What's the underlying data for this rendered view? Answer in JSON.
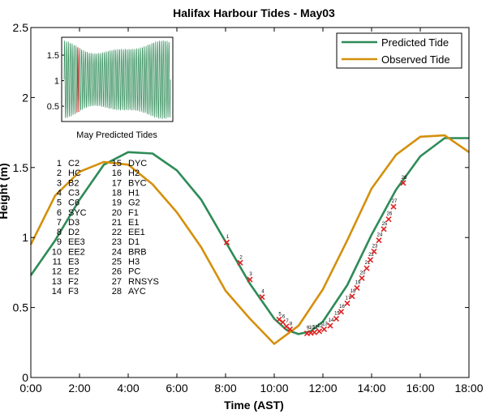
{
  "chart_data": {
    "type": "line",
    "title": "Halifax Harbour Tides - May03",
    "xlabel": "Time (AST)",
    "ylabel": "Height (m)",
    "xlim": [
      0,
      18
    ],
    "ylim": [
      0,
      2.5
    ],
    "x_ticks": [
      0,
      2,
      4,
      6,
      8,
      10,
      12,
      14,
      16,
      18
    ],
    "x_tick_labels": [
      "0:00",
      "2:00",
      "4:00",
      "6:00",
      "8:00",
      "10:00",
      "12:00",
      "14:00",
      "16:00",
      "18:00"
    ],
    "y_ticks": [
      0,
      0.5,
      1,
      1.5,
      2,
      2.5
    ],
    "y_tick_labels": [
      "0",
      "0.5",
      "1",
      "1.5",
      "2",
      "2.5"
    ],
    "grid": false,
    "legend_position": "top-right",
    "series": [
      {
        "name": "Predicted Tide",
        "color": "#2e8b57",
        "x": [
          0,
          1,
          2,
          3,
          4,
          5,
          6,
          7,
          8,
          9,
          10,
          10.5,
          11,
          11.5,
          12,
          13,
          14,
          15,
          16,
          17,
          18
        ],
        "y": [
          0.73,
          0.98,
          1.27,
          1.52,
          1.61,
          1.6,
          1.48,
          1.27,
          0.97,
          0.67,
          0.42,
          0.34,
          0.31,
          0.33,
          0.4,
          0.66,
          1.02,
          1.34,
          1.58,
          1.71,
          1.71
        ]
      },
      {
        "name": "Observed Tide",
        "color": "#d4900c",
        "x": [
          0,
          1,
          2,
          3,
          4,
          5,
          6,
          7,
          8,
          9,
          10,
          11,
          12,
          13,
          14,
          15,
          16,
          17,
          18
        ],
        "y": [
          0.95,
          1.3,
          1.47,
          1.54,
          1.52,
          1.38,
          1.18,
          0.93,
          0.62,
          0.42,
          0.24,
          0.37,
          0.63,
          0.98,
          1.35,
          1.59,
          1.72,
          1.73,
          1.61
        ]
      }
    ],
    "markers": {
      "color": "#e02020",
      "symbol": "x",
      "points": [
        {
          "label": "1",
          "x": 8.05,
          "y": 0.965
        },
        {
          "label": "2",
          "x": 8.6,
          "y": 0.82
        },
        {
          "label": "3",
          "x": 9.0,
          "y": 0.7
        },
        {
          "label": "4",
          "x": 9.5,
          "y": 0.575
        },
        {
          "label": "5",
          "x": 10.2,
          "y": 0.415
        },
        {
          "label": "6",
          "x": 10.35,
          "y": 0.395
        },
        {
          "label": "7",
          "x": 10.5,
          "y": 0.365
        },
        {
          "label": "8",
          "x": 10.65,
          "y": 0.345
        },
        {
          "label": "9",
          "x": 11.35,
          "y": 0.315
        },
        {
          "label": "10",
          "x": 11.5,
          "y": 0.318
        },
        {
          "label": "11",
          "x": 11.65,
          "y": 0.322
        },
        {
          "label": "12",
          "x": 11.85,
          "y": 0.33
        },
        {
          "label": "13",
          "x": 12.05,
          "y": 0.345
        },
        {
          "label": "14",
          "x": 12.3,
          "y": 0.37
        },
        {
          "label": "15",
          "x": 12.55,
          "y": 0.42
        },
        {
          "label": "16",
          "x": 12.75,
          "y": 0.47
        },
        {
          "label": "17",
          "x": 13.0,
          "y": 0.53
        },
        {
          "label": "18",
          "x": 13.2,
          "y": 0.58
        },
        {
          "label": "19",
          "x": 13.4,
          "y": 0.64
        },
        {
          "label": "20",
          "x": 13.6,
          "y": 0.71
        },
        {
          "label": "21",
          "x": 13.8,
          "y": 0.78
        },
        {
          "label": "22",
          "x": 13.95,
          "y": 0.84
        },
        {
          "label": "23",
          "x": 14.1,
          "y": 0.9
        },
        {
          "label": "24",
          "x": 14.3,
          "y": 0.98
        },
        {
          "label": "25",
          "x": 14.5,
          "y": 1.06
        },
        {
          "label": "26",
          "x": 14.7,
          "y": 1.13
        },
        {
          "label": "27",
          "x": 14.9,
          "y": 1.22
        },
        {
          "label": "28",
          "x": 15.3,
          "y": 1.39
        }
      ]
    },
    "station_list": [
      {
        "num": "1",
        "code": "C2"
      },
      {
        "num": "2",
        "code": "HC"
      },
      {
        "num": "3",
        "code": "B2"
      },
      {
        "num": "4",
        "code": "C3"
      },
      {
        "num": "5",
        "code": "C6"
      },
      {
        "num": "6",
        "code": "SYC"
      },
      {
        "num": "7",
        "code": "D3"
      },
      {
        "num": "8",
        "code": "D2"
      },
      {
        "num": "9",
        "code": "EE3"
      },
      {
        "num": "10",
        "code": "EE2"
      },
      {
        "num": "11",
        "code": "E3"
      },
      {
        "num": "12",
        "code": "E2"
      },
      {
        "num": "13",
        "code": "F2"
      },
      {
        "num": "14",
        "code": "F3"
      },
      {
        "num": "15",
        "code": "DYC"
      },
      {
        "num": "16",
        "code": "H2"
      },
      {
        "num": "17",
        "code": "BYC"
      },
      {
        "num": "18",
        "code": "H1"
      },
      {
        "num": "19",
        "code": "G2"
      },
      {
        "num": "20",
        "code": "F1"
      },
      {
        "num": "21",
        "code": "E1"
      },
      {
        "num": "22",
        "code": "EE1"
      },
      {
        "num": "23",
        "code": "D1"
      },
      {
        "num": "24",
        "code": "BRB"
      },
      {
        "num": "25",
        "code": "H3"
      },
      {
        "num": "26",
        "code": "PC"
      },
      {
        "num": "27",
        "code": "RNSYS"
      },
      {
        "num": "28",
        "code": "AYC"
      }
    ],
    "inset": {
      "title": "May Predicted Tides",
      "y_tick_labels": [
        "1.5",
        "1",
        "0.5"
      ],
      "y_ticks": [
        1.5,
        1,
        0.5
      ],
      "ylim": [
        0.2,
        1.85
      ],
      "line_color": "#2e8b57",
      "highlight_color": "#e02020",
      "highlight_fraction": 0.12
    }
  }
}
